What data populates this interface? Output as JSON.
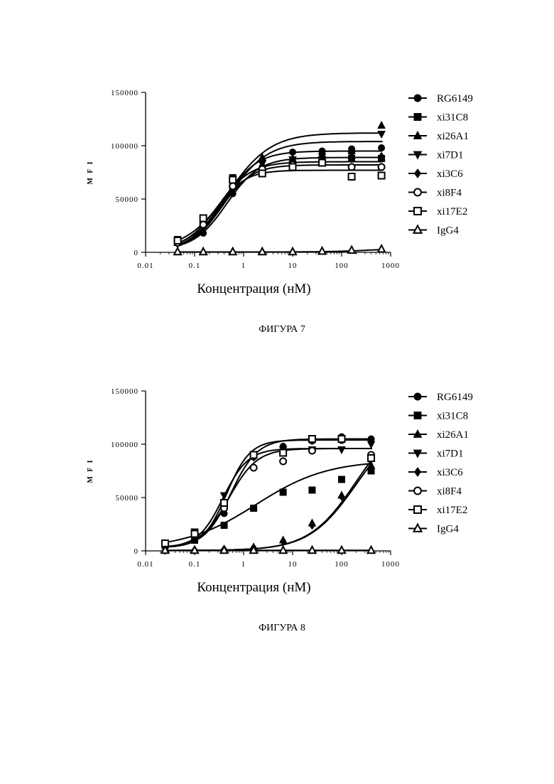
{
  "figures": [
    {
      "caption": "ФИГУРА 7",
      "chart_data": {
        "type": "scatter",
        "xlabel": "Концентрация (нМ)",
        "ylabel": "MFI",
        "x_scale": "log",
        "xlim": [
          0.01,
          1000
        ],
        "ylim": [
          0,
          150000
        ],
        "x_tick_labels": [
          "0.01",
          "0.1",
          "1",
          "10",
          "100",
          "1000"
        ],
        "y_tick_labels": [
          "0",
          "50000",
          "100000",
          "150000"
        ],
        "legend_position": "right",
        "series": [
          {
            "name": "RG6149",
            "marker": "circle-filled",
            "x": [
              0.045,
              0.15,
              0.6,
              2.4,
              10,
              40,
              160,
              650
            ],
            "y": [
              10000,
              18000,
              55000,
              80000,
              94000,
              95000,
              97000,
              98000
            ],
            "fit": {
              "bottom": 2000,
              "top": 95000,
              "ec50": 0.4,
              "hill": 1.3
            }
          },
          {
            "name": "xi31C8",
            "marker": "square-filled",
            "x": [
              0.045,
              0.15,
              0.6,
              2.4,
              10,
              40,
              160,
              650
            ],
            "y": [
              12000,
              30000,
              70000,
              75000,
              82000,
              86000,
              88000,
              88000
            ],
            "fit": {
              "bottom": 2000,
              "top": 85000,
              "ec50": 0.3,
              "hill": 1.3
            }
          },
          {
            "name": "xi26A1",
            "marker": "triangle-up-filled",
            "x": [
              0.045,
              0.15,
              0.6,
              2.4,
              10,
              40,
              160,
              650
            ],
            "y": [
              9000,
              28000,
              62000,
              89000,
              88000,
              92000,
              95000,
              119000
            ],
            "fit": {
              "bottom": 2000,
              "top": 112000,
              "ec50": 0.5,
              "hill": 1.0
            }
          },
          {
            "name": "xi7D1",
            "marker": "triangle-down-filled",
            "x": [
              0.045,
              0.15,
              0.6,
              2.4,
              10,
              40,
              160,
              650
            ],
            "y": [
              8000,
              25000,
              60000,
              83000,
              87000,
              90000,
              92000,
              111000
            ],
            "fit": {
              "bottom": 2000,
              "top": 104000,
              "ec50": 0.5,
              "hill": 1.1
            }
          },
          {
            "name": "xi3C6",
            "marker": "diamond-filled",
            "x": [
              0.045,
              0.15,
              0.6,
              2.4,
              10,
              40,
              160,
              650
            ],
            "y": [
              8000,
              24000,
              56000,
              80000,
              85000,
              88000,
              88000,
              90000
            ],
            "fit": {
              "bottom": 2000,
              "top": 89000,
              "ec50": 0.45,
              "hill": 1.3
            }
          },
          {
            "name": "xi8F4",
            "marker": "circle-open",
            "x": [
              0.045,
              0.15,
              0.6,
              2.4,
              10,
              40,
              160,
              650
            ],
            "y": [
              9000,
              26000,
              62000,
              78000,
              82000,
              84000,
              80000,
              80000
            ],
            "fit": {
              "bottom": 2000,
              "top": 82000,
              "ec50": 0.35,
              "hill": 1.4
            }
          },
          {
            "name": "xi17E2",
            "marker": "square-open",
            "x": [
              0.045,
              0.15,
              0.6,
              2.4,
              10,
              40,
              160,
              650
            ],
            "y": [
              11000,
              32000,
              68000,
              74000,
              80000,
              84000,
              71000,
              72000
            ],
            "fit": {
              "bottom": 2000,
              "top": 77000,
              "ec50": 0.28,
              "hill": 1.5
            }
          },
          {
            "name": "IgG4",
            "marker": "triangle-up-open",
            "x": [
              0.045,
              0.15,
              0.6,
              2.4,
              10,
              40,
              160,
              650
            ],
            "y": [
              500,
              500,
              500,
              500,
              500,
              1000,
              2000,
              3000
            ],
            "fit": {
              "bottom": 300,
              "top": 4000,
              "ec50": 400,
              "hill": 1.0
            }
          }
        ]
      }
    },
    {
      "caption": "ФИГУРА 8",
      "chart_data": {
        "type": "scatter",
        "xlabel": "Концентрация (нМ)",
        "ylabel": "MFI",
        "x_scale": "log",
        "xlim": [
          0.01,
          1000
        ],
        "ylim": [
          0,
          150000
        ],
        "x_tick_labels": [
          "0.01",
          "0.1",
          "1",
          "10",
          "100",
          "1000"
        ],
        "y_tick_labels": [
          "0",
          "50000",
          "100000",
          "150000"
        ],
        "legend_position": "right",
        "series": [
          {
            "name": "RG6149",
            "marker": "circle-filled",
            "x": [
              0.025,
              0.1,
              0.4,
              1.6,
              6.4,
              25,
              100,
              400
            ],
            "y": [
              7000,
              15000,
              35000,
              88000,
              98000,
              103000,
              107000,
              105000
            ],
            "fit": {
              "bottom": 3000,
              "top": 105000,
              "ec50": 0.55,
              "hill": 1.6
            }
          },
          {
            "name": "xi31C8",
            "marker": "square-filled",
            "x": [
              0.025,
              0.1,
              0.4,
              1.6,
              6.4,
              25,
              100,
              400
            ],
            "y": [
              5000,
              10000,
              24000,
              40000,
              55000,
              57000,
              67000,
              75000
            ],
            "fit": {
              "bottom": 2000,
              "top": 85000,
              "ec50": 1.8,
              "hill": 0.6
            }
          },
          {
            "name": "xi26A1",
            "marker": "triangle-up-filled",
            "x": [
              0.025,
              0.1,
              0.4,
              1.6,
              6.4,
              25,
              100,
              400
            ],
            "y": [
              500,
              800,
              1500,
              3500,
              10000,
              26000,
              52000,
              80000
            ],
            "fit": {
              "bottom": 300,
              "top": 130000,
              "ec50": 200,
              "hill": 0.9
            }
          },
          {
            "name": "xi7D1",
            "marker": "triangle-down-filled",
            "x": [
              0.025,
              0.1,
              0.4,
              1.6,
              6.4,
              25,
              100,
              400
            ],
            "y": [
              6000,
              18000,
              52000,
              88000,
              95000,
              95000,
              95000,
              100000
            ],
            "fit": {
              "bottom": 3000,
              "top": 96000,
              "ec50": 0.38,
              "hill": 1.7
            }
          },
          {
            "name": "xi3C6",
            "marker": "diamond-filled",
            "x": [
              0.025,
              0.1,
              0.4,
              1.6,
              6.4,
              25,
              100,
              400
            ],
            "y": [
              500,
              800,
              1500,
              3000,
              9000,
              24000,
              51000,
              77000
            ],
            "fit": {
              "bottom": 300,
              "top": 125000,
              "ec50": 200,
              "hill": 0.9
            }
          },
          {
            "name": "xi8F4",
            "marker": "circle-open",
            "x": [
              0.025,
              0.1,
              0.4,
              1.6,
              6.4,
              25,
              100,
              400
            ],
            "y": [
              6000,
              16000,
              40000,
              78000,
              84000,
              94000,
              104000,
              90000
            ],
            "fit": {
              "bottom": 3000,
              "top": 96000,
              "ec50": 0.5,
              "hill": 1.5
            }
          },
          {
            "name": "xi17E2",
            "marker": "square-open",
            "x": [
              0.025,
              0.1,
              0.4,
              1.6,
              6.4,
              25,
              100,
              400
            ],
            "y": [
              7000,
              16000,
              45000,
              90000,
              92000,
              105000,
              105000,
              87000
            ],
            "fit": {
              "bottom": 3000,
              "top": 104000,
              "ec50": 0.45,
              "hill": 1.8
            }
          },
          {
            "name": "IgG4",
            "marker": "triangle-up-open",
            "x": [
              0.025,
              0.1,
              0.4,
              1.6,
              6.4,
              25,
              100,
              400
            ],
            "y": [
              500,
              500,
              500,
              500,
              500,
              500,
              500,
              500
            ],
            "fit": {
              "bottom": 500,
              "top": 600,
              "ec50": 500,
              "hill": 1.0
            }
          }
        ]
      }
    }
  ]
}
